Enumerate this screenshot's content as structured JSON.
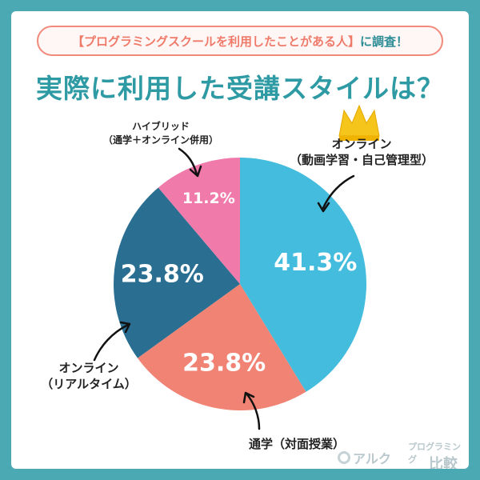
{
  "banner": {
    "highlight": "【プログラミングスクールを利用したことがある人】",
    "suffix": "に調査！"
  },
  "headline": "実際に利用した受講スタイルは？",
  "labels": {
    "hybrid_line1": "ハイブリッド",
    "hybrid_line2": "（通学＋オンライン併用）",
    "async_line1": "オンライン",
    "async_line2": "（動画学習・自己管理型）",
    "live_line1": "オンライン",
    "live_line2": "（リアルタイム）",
    "offline": "通学（対面授業）"
  },
  "branding": {
    "alc": "アルク",
    "sub": "プログラミング",
    "main": "比較"
  },
  "colors": {
    "background": "#4aa9b3",
    "accent": "#ef7a6a",
    "teal": "#2e9aa3"
  },
  "chart_data": {
    "type": "pie",
    "slices": [
      {
        "label": "オンライン（動画学習・自己管理型）",
        "value": 41.3,
        "display": "41.3%",
        "color": "#43bcde"
      },
      {
        "label": "通学（対面授業）",
        "value": 23.8,
        "display": "23.8%",
        "color": "#f08374"
      },
      {
        "label": "オンライン（リアルタイム）",
        "value": 23.8,
        "display": "23.8%",
        "color": "#2a6f91"
      },
      {
        "label": "ハイブリッド（通学＋オンライン併用）",
        "value": 11.2,
        "display": "11.2%",
        "color": "#f07bab"
      }
    ],
    "start_angle_deg": 0,
    "direction": "clockwise"
  }
}
